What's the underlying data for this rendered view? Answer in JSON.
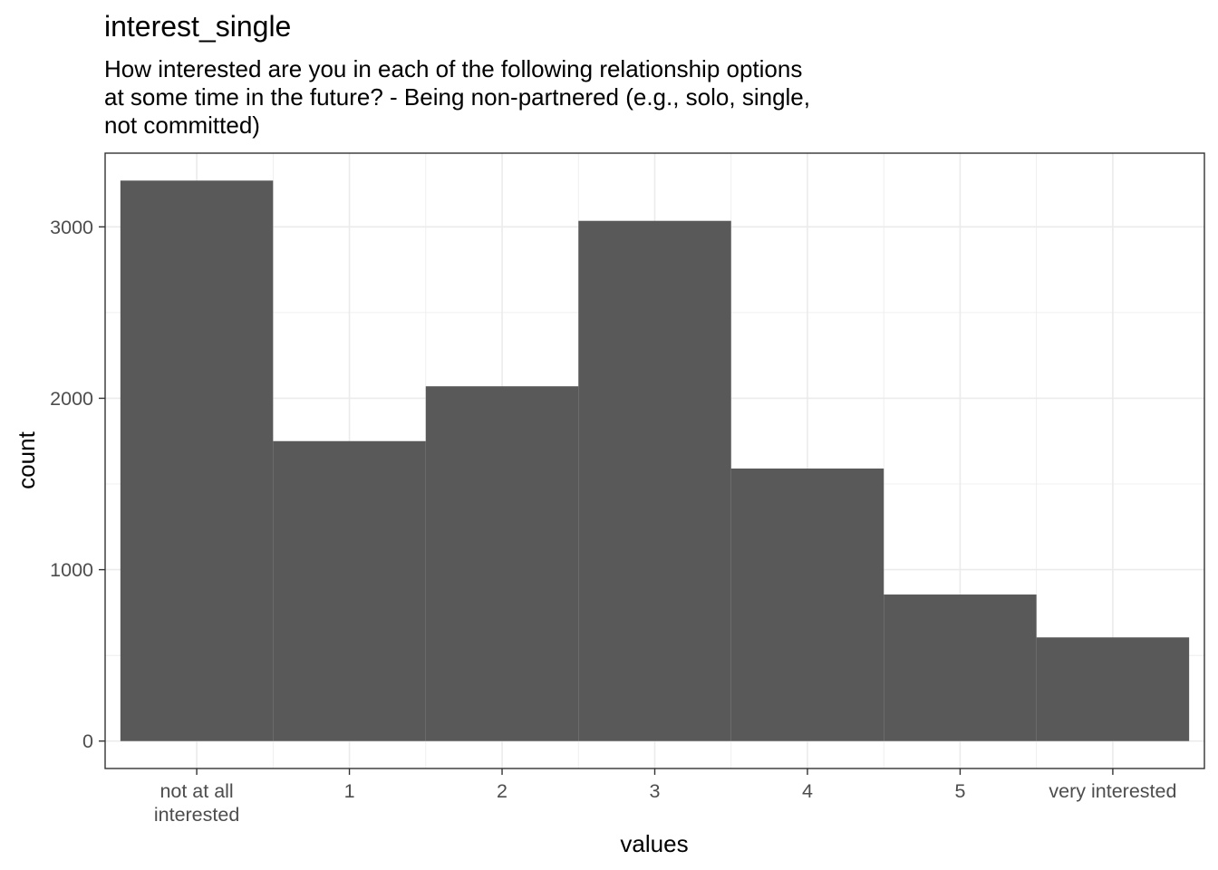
{
  "chart_data": {
    "type": "bar",
    "title": "interest_single",
    "subtitle_lines": [
      "How interested are you in each of the following relationship options",
      "at some time in the future? - Being non-partnered (e.g., solo, single,",
      "not committed)"
    ],
    "xlabel": "values",
    "ylabel": "count",
    "categories": [
      [
        "not at all",
        "interested"
      ],
      [
        "1"
      ],
      [
        "2"
      ],
      [
        "3"
      ],
      [
        "4"
      ],
      [
        "5"
      ],
      [
        "very interested"
      ]
    ],
    "values": [
      3270,
      1750,
      2070,
      3035,
      1590,
      855,
      605
    ],
    "ylim": [
      -160,
      3430
    ],
    "yticks": [
      0,
      1000,
      2000,
      3000
    ],
    "ytick_labels": [
      "0",
      "1000",
      "2000",
      "3000"
    ],
    "grid": true,
    "bar_color": "#595959",
    "grid_color": "#ebebeb",
    "panel_border_color": "#333333"
  }
}
